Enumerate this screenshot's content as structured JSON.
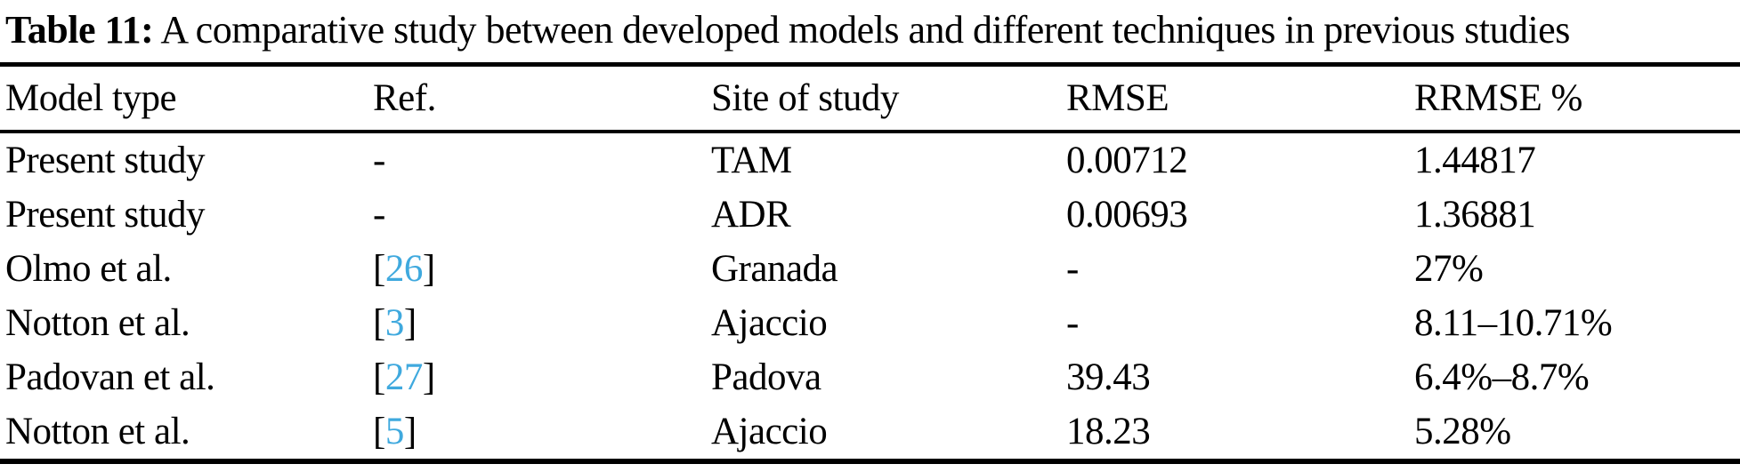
{
  "caption": {
    "label": "Table 11:",
    "text": " A comparative study between developed models and different techniques in previous studies"
  },
  "table": {
    "columns": [
      {
        "key": "model_type",
        "label": "Model type"
      },
      {
        "key": "ref",
        "label": "Ref."
      },
      {
        "key": "site",
        "label": "Site of study"
      },
      {
        "key": "rmse",
        "label": "RMSE"
      },
      {
        "key": "rrmse",
        "label": "RRMSE %"
      }
    ],
    "rows": [
      {
        "model_type": "Present study",
        "ref_number": null,
        "ref_display": "-",
        "site": "TAM",
        "rmse": "0.00712",
        "rrmse": "1.44817"
      },
      {
        "model_type": "Present study",
        "ref_number": null,
        "ref_display": "-",
        "site": "ADR",
        "rmse": "0.00693",
        "rrmse": "1.36881"
      },
      {
        "model_type": "Olmo et al.",
        "ref_number": "26",
        "ref_display": "[26]",
        "site": "Granada",
        "rmse": "-",
        "rrmse": "27%"
      },
      {
        "model_type": "Notton et al.",
        "ref_number": "3",
        "ref_display": "[3]",
        "site": "Ajaccio",
        "rmse": "-",
        "rrmse": "8.11–10.71%"
      },
      {
        "model_type": "Padovan et al.",
        "ref_number": "27",
        "ref_display": "[27]",
        "site": "Padova",
        "rmse": "39.43",
        "rrmse": "6.4%–8.7%"
      },
      {
        "model_type": "Notton et al.",
        "ref_number": "5",
        "ref_display": "[5]",
        "site": "Ajaccio",
        "rmse": "18.23",
        "rrmse": "5.28%"
      }
    ]
  },
  "colors": {
    "text": "#000000",
    "citation_link": "#3fa9de",
    "background": "#ffffff"
  }
}
